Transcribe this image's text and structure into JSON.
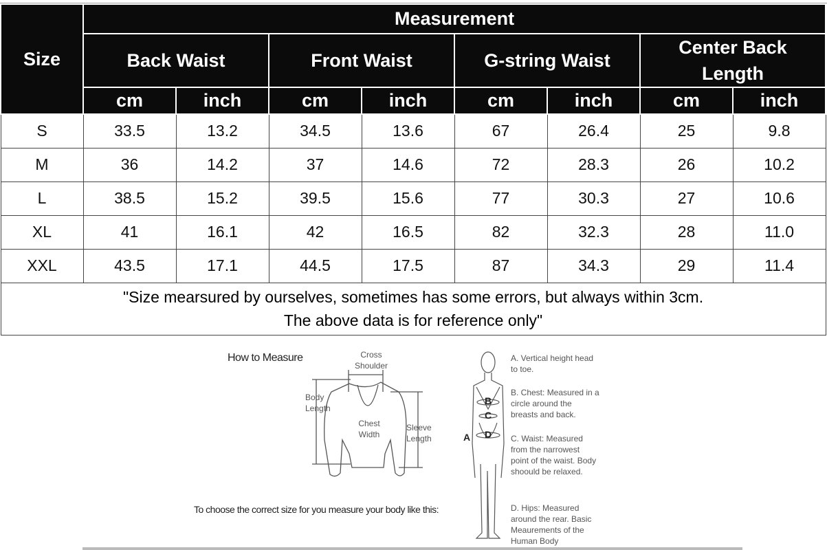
{
  "table": {
    "size_header": "Size",
    "measurement_header": "Measurement",
    "groups": [
      "Back Waist",
      "Front Waist",
      "G-string Waist",
      "Center Back Length"
    ],
    "units": [
      "cm",
      "inch",
      "cm",
      "inch",
      "cm",
      "inch",
      "cm",
      "inch"
    ],
    "rows": [
      [
        "S",
        "33.5",
        "13.2",
        "34.5",
        "13.6",
        "67",
        "26.4",
        "25",
        "9.8"
      ],
      [
        "M",
        "36",
        "14.2",
        "37",
        "14.6",
        "72",
        "28.3",
        "26",
        "10.2"
      ],
      [
        "L",
        "38.5",
        "15.2",
        "39.5",
        "15.6",
        "77",
        "30.3",
        "27",
        "10.6"
      ],
      [
        "XL",
        "41",
        "16.1",
        "42",
        "16.5",
        "82",
        "32.3",
        "28",
        "11.0"
      ],
      [
        "XXL",
        "43.5",
        "17.1",
        "44.5",
        "17.5",
        "87",
        "34.3",
        "29",
        "11.4"
      ]
    ],
    "note_line1": "\"Size mearsured by ourselves, sometimes has some errors, but always within 3cm.",
    "note_line2": "The above data is for reference only\""
  },
  "guide": {
    "title": "How to Measure",
    "cross_shoulder": "Cross Shoulder",
    "body_length": "Body Length",
    "chest_width": "Chest Width",
    "sleeve_length": "Sleeve Length",
    "instruction": "To choose the correct size for you measure your body like this:",
    "markers": [
      "A",
      "B",
      "C",
      "D"
    ],
    "notes": [
      "A. Vertical height head to toe.",
      "B. Chest: Measured in a circle around the breasts and back.",
      "C. Waist: Measured from the narrowest point of the waist. Body shoould be relaxed.",
      "D. Hips: Measured around the rear. Basic Meaurements of the Human Body"
    ]
  }
}
